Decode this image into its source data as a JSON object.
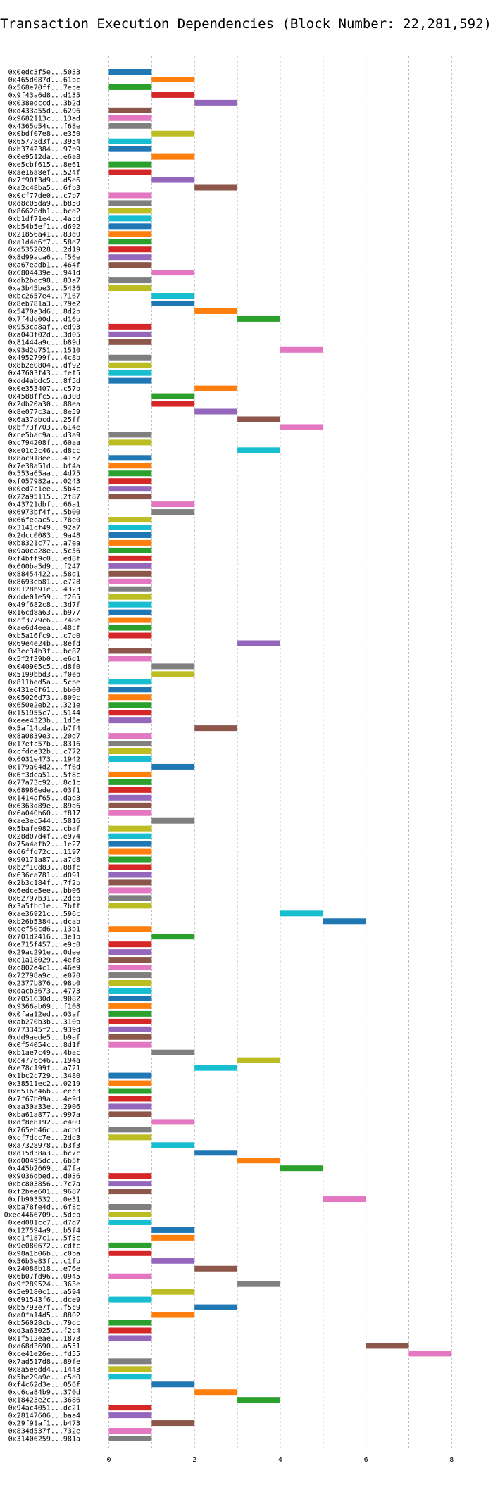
{
  "chart_data": {
    "type": "bar",
    "orientation": "horizontal-gantt",
    "title": "Transaction Execution Dependencies (Block Number: 22,281,592)",
    "xlabel": "",
    "ylabel": "",
    "xlim": [
      -0.6,
      8.8
    ],
    "x_ticks": [
      0,
      2,
      4,
      6,
      8
    ],
    "grid": "vertical dashed",
    "legend": "none",
    "palette": [
      "#1f77b4",
      "#ff7f0e",
      "#2ca02c",
      "#d62728",
      "#9467bd",
      "#8c564b",
      "#e377c2",
      "#7f7f7f",
      "#bcbd22",
      "#17becf"
    ],
    "transactions": [
      {
        "label": "0x0edc3f5e...5033",
        "start": 0,
        "end": 1
      },
      {
        "label": "0x465d087d...61bc",
        "start": 1,
        "end": 2
      },
      {
        "label": "0x568e70ff...7ece",
        "start": 0,
        "end": 1
      },
      {
        "label": "0x9f43a6d8...d135",
        "start": 1,
        "end": 2
      },
      {
        "label": "0x038edccd...3b2d",
        "start": 2,
        "end": 3
      },
      {
        "label": "0xd433a55d...6296",
        "start": 0,
        "end": 1
      },
      {
        "label": "0x9682113c...13ad",
        "start": 0,
        "end": 1
      },
      {
        "label": "0x4365d54c...f68e",
        "start": 0,
        "end": 1
      },
      {
        "label": "0x0bdf07e8...e350",
        "start": 1,
        "end": 2
      },
      {
        "label": "0x65778d3f...3954",
        "start": 0,
        "end": 1
      },
      {
        "label": "0xb3742384...97b9",
        "start": 0,
        "end": 1
      },
      {
        "label": "0x0e9512da...e6a8",
        "start": 1,
        "end": 2
      },
      {
        "label": "0xe5cbf615...8e61",
        "start": 0,
        "end": 1
      },
      {
        "label": "0xae16a8ef...524f",
        "start": 0,
        "end": 1
      },
      {
        "label": "0x7f90f3d9...d5e6",
        "start": 1,
        "end": 2
      },
      {
        "label": "0xa2c48ba5...6fb3",
        "start": 2,
        "end": 3
      },
      {
        "label": "0x0cf77de0...c7b7",
        "start": 0,
        "end": 1
      },
      {
        "label": "0xd8c05da9...b850",
        "start": 0,
        "end": 1
      },
      {
        "label": "0x86628db1...bcd2",
        "start": 0,
        "end": 1
      },
      {
        "label": "0xb1df71e4...4acd",
        "start": 0,
        "end": 1
      },
      {
        "label": "0xb54b5ef1...d692",
        "start": 0,
        "end": 1
      },
      {
        "label": "0x21856a41...83d0",
        "start": 0,
        "end": 1
      },
      {
        "label": "0xa1d4d6f7...58d7",
        "start": 0,
        "end": 1
      },
      {
        "label": "0xd5352028...2d19",
        "start": 0,
        "end": 1
      },
      {
        "label": "0x8d99aca6...f56e",
        "start": 0,
        "end": 1
      },
      {
        "label": "0xa67eadb1...464f",
        "start": 0,
        "end": 1
      },
      {
        "label": "0x6804439e...941d",
        "start": 1,
        "end": 2
      },
      {
        "label": "0xdb2bdc98...83a7",
        "start": 0,
        "end": 1
      },
      {
        "label": "0xa3b45be3...5436",
        "start": 0,
        "end": 1
      },
      {
        "label": "0xbc2657e4...7167",
        "start": 1,
        "end": 2
      },
      {
        "label": "0x8eb781a3...79e2",
        "start": 1,
        "end": 2
      },
      {
        "label": "0x5470a3d6...8d2b",
        "start": 2,
        "end": 3
      },
      {
        "label": "0x7f4dd00d...d16b",
        "start": 3,
        "end": 4
      },
      {
        "label": "0x953ca8af...ed93",
        "start": 0,
        "end": 1
      },
      {
        "label": "0xa043f02d...3d05",
        "start": 0,
        "end": 1
      },
      {
        "label": "0x81444a9c...b89d",
        "start": 0,
        "end": 1
      },
      {
        "label": "0x93d2d751...1510",
        "start": 4,
        "end": 5
      },
      {
        "label": "0x4952799f...4c8b",
        "start": 0,
        "end": 1
      },
      {
        "label": "0x8b2e0804...df92",
        "start": 0,
        "end": 1
      },
      {
        "label": "0x47603f43...fef5",
        "start": 0,
        "end": 1
      },
      {
        "label": "0xdd4abdc5...8f5d",
        "start": 0,
        "end": 1
      },
      {
        "label": "0x0e353407...c57b",
        "start": 2,
        "end": 3
      },
      {
        "label": "0x4588ffc5...a308",
        "start": 1,
        "end": 2
      },
      {
        "label": "0x2db20a30...88ea",
        "start": 1,
        "end": 2
      },
      {
        "label": "0x8e077c3a...8e59",
        "start": 2,
        "end": 3
      },
      {
        "label": "0x6a37abcd...25ff",
        "start": 3,
        "end": 4
      },
      {
        "label": "0xbf73f703...614e",
        "start": 4,
        "end": 5
      },
      {
        "label": "0xce5bac9a...d3a9",
        "start": 0,
        "end": 1
      },
      {
        "label": "0xc794208f...60aa",
        "start": 0,
        "end": 1
      },
      {
        "label": "0xe01c2c46...d8cc",
        "start": 3,
        "end": 4
      },
      {
        "label": "0x8ac918ee...4157",
        "start": 0,
        "end": 1
      },
      {
        "label": "0x7e38a51d...bf4a",
        "start": 0,
        "end": 1
      },
      {
        "label": "0x553a65aa...4d75",
        "start": 0,
        "end": 1
      },
      {
        "label": "0xf057982a...0243",
        "start": 0,
        "end": 1
      },
      {
        "label": "0x0ed7c1ee...5b4c",
        "start": 0,
        "end": 1
      },
      {
        "label": "0x22a95115...2f87",
        "start": 0,
        "end": 1
      },
      {
        "label": "0x43721dbf...66a1",
        "start": 1,
        "end": 2
      },
      {
        "label": "0x6973bf4f...5b00",
        "start": 1,
        "end": 2
      },
      {
        "label": "0x66fecac5...78e0",
        "start": 0,
        "end": 1
      },
      {
        "label": "0x3141cf49...92a7",
        "start": 0,
        "end": 1
      },
      {
        "label": "0x2dcc0083...9a48",
        "start": 0,
        "end": 1
      },
      {
        "label": "0xb8321c77...a7ea",
        "start": 0,
        "end": 1
      },
      {
        "label": "0x9a0ca28e...5c56",
        "start": 0,
        "end": 1
      },
      {
        "label": "0xf4bff9c0...ed8f",
        "start": 0,
        "end": 1
      },
      {
        "label": "0x600ba5d9...f247",
        "start": 0,
        "end": 1
      },
      {
        "label": "0x88454422...58d1",
        "start": 0,
        "end": 1
      },
      {
        "label": "0x8693eb81...e728",
        "start": 0,
        "end": 1
      },
      {
        "label": "0x0128b91e...4323",
        "start": 0,
        "end": 1
      },
      {
        "label": "0xdde01e59...f265",
        "start": 0,
        "end": 1
      },
      {
        "label": "0x49f682c8...3d7f",
        "start": 0,
        "end": 1
      },
      {
        "label": "0x16cd8a63...b977",
        "start": 0,
        "end": 1
      },
      {
        "label": "0xcf3779c6...748e",
        "start": 0,
        "end": 1
      },
      {
        "label": "0xae6d4eea...48cf",
        "start": 0,
        "end": 1
      },
      {
        "label": "0xb5a16fc9...c7d0",
        "start": 0,
        "end": 1
      },
      {
        "label": "0x69e4e24b...8efd",
        "start": 3,
        "end": 4
      },
      {
        "label": "0x3ec34b3f...bc87",
        "start": 0,
        "end": 1
      },
      {
        "label": "0x5f2f39b0...e6d1",
        "start": 0,
        "end": 1
      },
      {
        "label": "0x040905c5...d8f0",
        "start": 1,
        "end": 2
      },
      {
        "label": "0x5199bbd3...f0eb",
        "start": 1,
        "end": 2
      },
      {
        "label": "0x811bed5a...5cbe",
        "start": 0,
        "end": 1
      },
      {
        "label": "0x431e6f61...bb00",
        "start": 0,
        "end": 1
      },
      {
        "label": "0x05026d73...809c",
        "start": 0,
        "end": 1
      },
      {
        "label": "0x650e2eb2...321e",
        "start": 0,
        "end": 1
      },
      {
        "label": "0x151955c7...5144",
        "start": 0,
        "end": 1
      },
      {
        "label": "0xeee4323b...1d5e",
        "start": 0,
        "end": 1
      },
      {
        "label": "0x5af14cda...b7f4",
        "start": 2,
        "end": 3
      },
      {
        "label": "0x8a0839e3...20d7",
        "start": 0,
        "end": 1
      },
      {
        "label": "0x17efc57b...8316",
        "start": 0,
        "end": 1
      },
      {
        "label": "0xcfdce32b...c772",
        "start": 0,
        "end": 1
      },
      {
        "label": "0x6031e473...1942",
        "start": 0,
        "end": 1
      },
      {
        "label": "0x179a04d2...ff6d",
        "start": 1,
        "end": 2
      },
      {
        "label": "0x6f3dea51...5f8c",
        "start": 0,
        "end": 1
      },
      {
        "label": "0x77a73c92...8c1c",
        "start": 0,
        "end": 1
      },
      {
        "label": "0x68986ede...03f1",
        "start": 0,
        "end": 1
      },
      {
        "label": "0x1414af65...dad3",
        "start": 0,
        "end": 1
      },
      {
        "label": "0x6363d89e...89d6",
        "start": 0,
        "end": 1
      },
      {
        "label": "0x6a040b60...f817",
        "start": 0,
        "end": 1
      },
      {
        "label": "0xae3ec544...5816",
        "start": 1,
        "end": 2
      },
      {
        "label": "0x5bafe082...cbaf",
        "start": 0,
        "end": 1
      },
      {
        "label": "0x28d07d4f...e974",
        "start": 0,
        "end": 1
      },
      {
        "label": "0x75a4afb2...1e27",
        "start": 0,
        "end": 1
      },
      {
        "label": "0x66ffd72c...1197",
        "start": 0,
        "end": 1
      },
      {
        "label": "0x90171a87...a7d8",
        "start": 0,
        "end": 1
      },
      {
        "label": "0xb2f10d83...88fc",
        "start": 0,
        "end": 1
      },
      {
        "label": "0x636ca781...d091",
        "start": 0,
        "end": 1
      },
      {
        "label": "0x2b3c184f...7f2b",
        "start": 0,
        "end": 1
      },
      {
        "label": "0x6edce5ee...bb06",
        "start": 0,
        "end": 1
      },
      {
        "label": "0x62797b31...2dcb",
        "start": 0,
        "end": 1
      },
      {
        "label": "0x3a5fbc1e...7bff",
        "start": 0,
        "end": 1
      },
      {
        "label": "0xae36921c...596c",
        "start": 4,
        "end": 5
      },
      {
        "label": "0xb26b5384...dcab",
        "start": 5,
        "end": 6
      },
      {
        "label": "0xcef50cd6...13b1",
        "start": 0,
        "end": 1
      },
      {
        "label": "0x701d2416...3e1b",
        "start": 1,
        "end": 2
      },
      {
        "label": "0xe715f457...e9c0",
        "start": 0,
        "end": 1
      },
      {
        "label": "0x29ac291e...0dee",
        "start": 0,
        "end": 1
      },
      {
        "label": "0xe1a18029...4ef8",
        "start": 0,
        "end": 1
      },
      {
        "label": "0xc802e4c1...46e9",
        "start": 0,
        "end": 1
      },
      {
        "label": "0x72798a9c...e070",
        "start": 0,
        "end": 1
      },
      {
        "label": "0x2377b876...98b0",
        "start": 0,
        "end": 1
      },
      {
        "label": "0xdacb3673...4773",
        "start": 0,
        "end": 1
      },
      {
        "label": "0x7051630d...9082",
        "start": 0,
        "end": 1
      },
      {
        "label": "0x9366ab69...f108",
        "start": 0,
        "end": 1
      },
      {
        "label": "0x0faa12ed...03af",
        "start": 0,
        "end": 1
      },
      {
        "label": "0xab270b3b...310b",
        "start": 0,
        "end": 1
      },
      {
        "label": "0x773345f2...939d",
        "start": 0,
        "end": 1
      },
      {
        "label": "0xdd9aede5...b9af",
        "start": 0,
        "end": 1
      },
      {
        "label": "0x0f54054c...8d1f",
        "start": 0,
        "end": 1
      },
      {
        "label": "0xb1ae7c49...4bac",
        "start": 1,
        "end": 2
      },
      {
        "label": "0xc4776c46...194a",
        "start": 3,
        "end": 4
      },
      {
        "label": "0xe78c199f...a721",
        "start": 2,
        "end": 3
      },
      {
        "label": "0x1bc2c729...3480",
        "start": 0,
        "end": 1
      },
      {
        "label": "0x38511ec2...0219",
        "start": 0,
        "end": 1
      },
      {
        "label": "0x6516c46b...eec3",
        "start": 0,
        "end": 1
      },
      {
        "label": "0x7f67b09a...4e9d",
        "start": 0,
        "end": 1
      },
      {
        "label": "0xaa30a33e...2906",
        "start": 0,
        "end": 1
      },
      {
        "label": "0xba61a877...997a",
        "start": 0,
        "end": 1
      },
      {
        "label": "0xdf8e8192...e400",
        "start": 1,
        "end": 2
      },
      {
        "label": "0x765eb46c...acbd",
        "start": 0,
        "end": 1
      },
      {
        "label": "0xcf7dcc7e...2dd3",
        "start": 0,
        "end": 1
      },
      {
        "label": "0xa7328978...b3f3",
        "start": 1,
        "end": 2
      },
      {
        "label": "0xd15d38a3...bc7c",
        "start": 2,
        "end": 3
      },
      {
        "label": "0xd00495dc...6b5f",
        "start": 3,
        "end": 4
      },
      {
        "label": "0x445b2669...47fa",
        "start": 4,
        "end": 5
      },
      {
        "label": "0x9036dbed...d036",
        "start": 0,
        "end": 1
      },
      {
        "label": "0xbc803856...7c7a",
        "start": 0,
        "end": 1
      },
      {
        "label": "0xf2bee601...9687",
        "start": 0,
        "end": 1
      },
      {
        "label": "0xfb903532...0e31",
        "start": 5,
        "end": 6
      },
      {
        "label": "0xba78fe4d...6f8c",
        "start": 0,
        "end": 1
      },
      {
        "label": "0xee4466709...5dcb",
        "start": 0,
        "end": 1
      },
      {
        "label": "0xed081cc7...d7d7",
        "start": 0,
        "end": 1
      },
      {
        "label": "0x127594a9...b5f4",
        "start": 1,
        "end": 2
      },
      {
        "label": "0xc1f187c1...5f3c",
        "start": 1,
        "end": 2
      },
      {
        "label": "0x9e080672...cdfc",
        "start": 0,
        "end": 1
      },
      {
        "label": "0x98a1b06b...c0ba",
        "start": 0,
        "end": 1
      },
      {
        "label": "0x56b3e83f...c1fb",
        "start": 1,
        "end": 2
      },
      {
        "label": "0x24088b18...e76e",
        "start": 2,
        "end": 3
      },
      {
        "label": "0x6b07fd96...0945",
        "start": 0,
        "end": 1
      },
      {
        "label": "0x9f289524...363e",
        "start": 3,
        "end": 4
      },
      {
        "label": "0x5e9180c1...a594",
        "start": 1,
        "end": 2
      },
      {
        "label": "0x691543f6...dce9",
        "start": 0,
        "end": 1
      },
      {
        "label": "0xb5793e7f...f5c9",
        "start": 2,
        "end": 3
      },
      {
        "label": "0xa0fa14d5...8802",
        "start": 1,
        "end": 2
      },
      {
        "label": "0xb56028cb...79dc",
        "start": 0,
        "end": 1
      },
      {
        "label": "0xd3a63025...f2c4",
        "start": 0,
        "end": 1
      },
      {
        "label": "0x1f512eae...1873",
        "start": 0,
        "end": 1
      },
      {
        "label": "0xd68d3690...a551",
        "start": 6,
        "end": 7
      },
      {
        "label": "0xce41e26e...fd55",
        "start": 7,
        "end": 8
      },
      {
        "label": "0x7ad517d8...89fe",
        "start": 0,
        "end": 1
      },
      {
        "label": "0x8a5e6dd4...1443",
        "start": 0,
        "end": 1
      },
      {
        "label": "0x5be29a9e...c5d0",
        "start": 0,
        "end": 1
      },
      {
        "label": "0xf4c62d3e...056f",
        "start": 1,
        "end": 2
      },
      {
        "label": "0xc6ca84b9...370d",
        "start": 2,
        "end": 3
      },
      {
        "label": "0x18423e2c...3686",
        "start": 3,
        "end": 4
      },
      {
        "label": "0x94ac4051...dc21",
        "start": 0,
        "end": 1
      },
      {
        "label": "0x28147606...baa4",
        "start": 0,
        "end": 1
      },
      {
        "label": "0x29f91af1...b473",
        "start": 1,
        "end": 2
      },
      {
        "label": "0x834d537f...732e",
        "start": 0,
        "end": 1
      },
      {
        "label": "0x31406259...981a",
        "start": 0,
        "end": 1
      }
    ]
  }
}
